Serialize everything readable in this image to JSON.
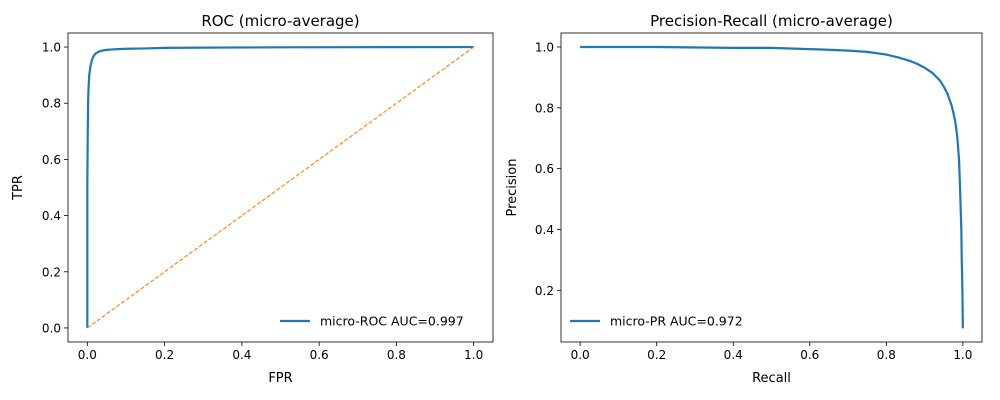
{
  "chart_data": [
    {
      "type": "line",
      "title": "ROC (micro-average)",
      "xlabel": "FPR",
      "ylabel": "TPR",
      "xlim": [
        -0.05,
        1.05
      ],
      "ylim": [
        -0.05,
        1.05
      ],
      "xticks": [
        0.0,
        0.2,
        0.4,
        0.6,
        0.8,
        1.0
      ],
      "yticks": [
        0.0,
        0.2,
        0.4,
        0.6,
        0.8,
        1.0
      ],
      "xtick_labels": [
        "0.0",
        "0.2",
        "0.4",
        "0.6",
        "0.8",
        "1.0"
      ],
      "ytick_labels": [
        "0.0",
        "0.2",
        "0.4",
        "0.6",
        "0.8",
        "1.0"
      ],
      "grid": false,
      "legend_position": "lower-right",
      "series": [
        {
          "name": "micro-ROC AUC=0.997",
          "color": "#1f77b4",
          "style": "solid",
          "in_legend": true,
          "x": [
            0.0,
            0.0,
            0.001,
            0.002,
            0.003,
            0.005,
            0.008,
            0.012,
            0.016,
            0.02,
            0.025,
            0.03,
            0.04,
            0.05,
            0.07,
            0.1,
            0.15,
            0.2,
            0.3,
            0.5,
            0.7,
            1.0
          ],
          "y": [
            0.0,
            0.5,
            0.68,
            0.8,
            0.85,
            0.9,
            0.93,
            0.955,
            0.967,
            0.975,
            0.98,
            0.984,
            0.988,
            0.99,
            0.992,
            0.994,
            0.995,
            0.997,
            0.998,
            0.999,
            0.9995,
            1.0
          ]
        },
        {
          "name": "chance",
          "color": "#ff7f0e",
          "style": "dashed",
          "in_legend": false,
          "x": [
            0.0,
            1.0
          ],
          "y": [
            0.0,
            1.0
          ]
        }
      ]
    },
    {
      "type": "line",
      "title": "Precision-Recall (micro-average)",
      "xlabel": "Recall",
      "ylabel": "Precision",
      "xlim": [
        -0.05,
        1.05
      ],
      "ylim": [
        0.03,
        1.046
      ],
      "xticks": [
        0.0,
        0.2,
        0.4,
        0.6,
        0.8,
        1.0
      ],
      "yticks": [
        0.2,
        0.4,
        0.6,
        0.8,
        1.0
      ],
      "xtick_labels": [
        "0.0",
        "0.2",
        "0.4",
        "0.6",
        "0.8",
        "1.0"
      ],
      "ytick_labels": [
        "0.2",
        "0.4",
        "0.6",
        "0.8",
        "1.0"
      ],
      "grid": false,
      "legend_position": "lower-left",
      "series": [
        {
          "name": "micro-PR AUC=0.972",
          "color": "#1f77b4",
          "style": "solid",
          "in_legend": true,
          "x": [
            0.0,
            0.2,
            0.4,
            0.5,
            0.6,
            0.65,
            0.7,
            0.75,
            0.8,
            0.83,
            0.86,
            0.88,
            0.9,
            0.92,
            0.94,
            0.95,
            0.96,
            0.97,
            0.975,
            0.98,
            0.985,
            0.99,
            0.992,
            0.994,
            0.996,
            0.997,
            0.998,
            0.999,
            1.0
          ],
          "y": [
            1.0,
            1.0,
            0.997,
            0.997,
            0.993,
            0.991,
            0.988,
            0.984,
            0.975,
            0.966,
            0.955,
            0.945,
            0.932,
            0.915,
            0.89,
            0.87,
            0.845,
            0.81,
            0.785,
            0.755,
            0.71,
            0.63,
            0.56,
            0.48,
            0.4,
            0.3,
            0.25,
            0.18,
            0.075
          ]
        }
      ]
    }
  ]
}
